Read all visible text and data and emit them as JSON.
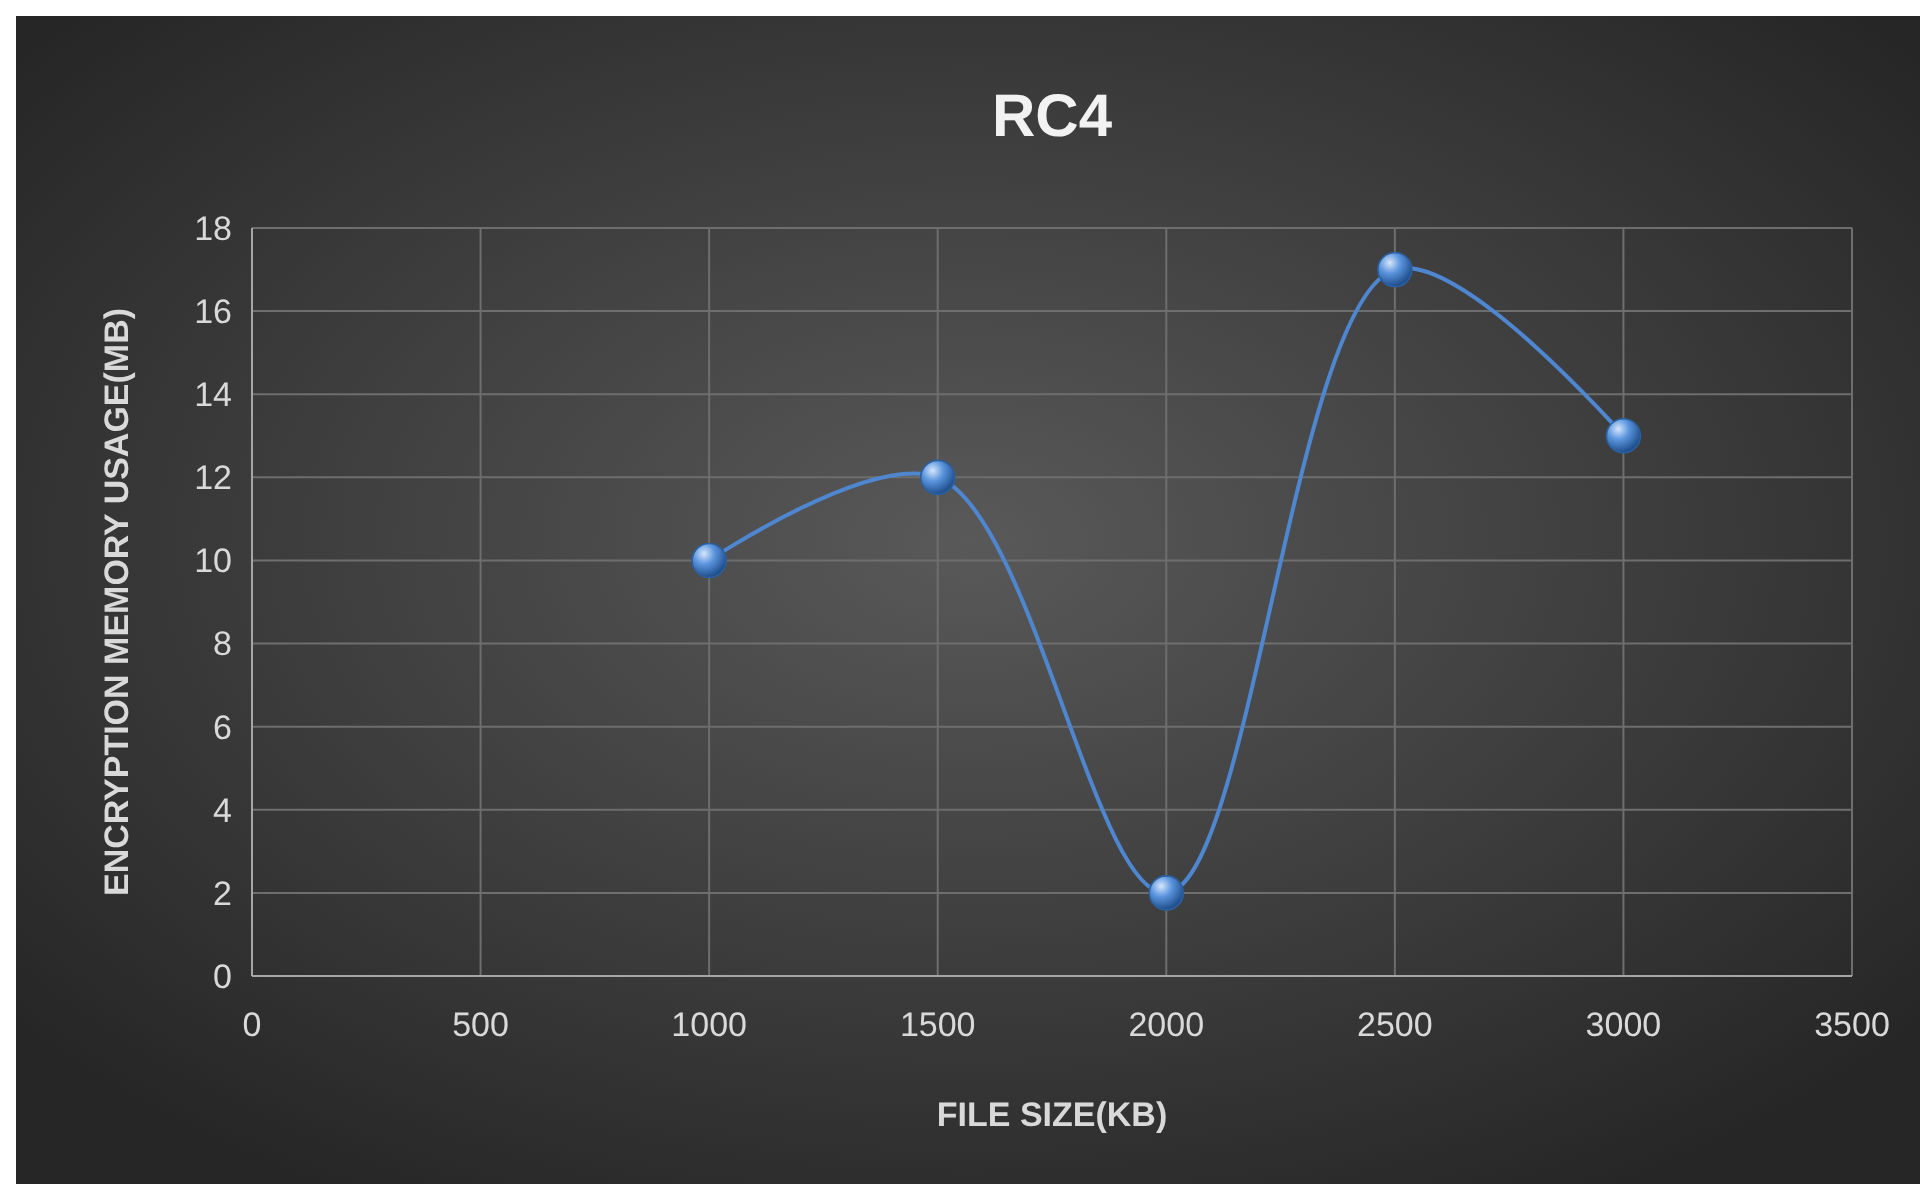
{
  "chart_data": {
    "type": "line",
    "title": "RC4",
    "xlabel": "FILE SIZE(KB)",
    "ylabel": "ENCRYPTION MEMORY USAGE(MB)",
    "x": [
      1000,
      1500,
      2000,
      2500,
      3000
    ],
    "series": [
      {
        "color": "#4f86d0",
        "values": [
          10,
          12,
          2,
          17,
          13
        ]
      }
    ],
    "xlim": [
      0,
      3500
    ],
    "xticks": [
      0,
      500,
      1000,
      1500,
      2000,
      2500,
      3000,
      3500
    ],
    "ylim": [
      0,
      18
    ],
    "yticks": [
      0,
      2,
      4,
      6,
      8,
      10,
      12,
      14,
      16,
      18
    ],
    "grid": true,
    "marker": "circle",
    "line_style": "solid"
  }
}
